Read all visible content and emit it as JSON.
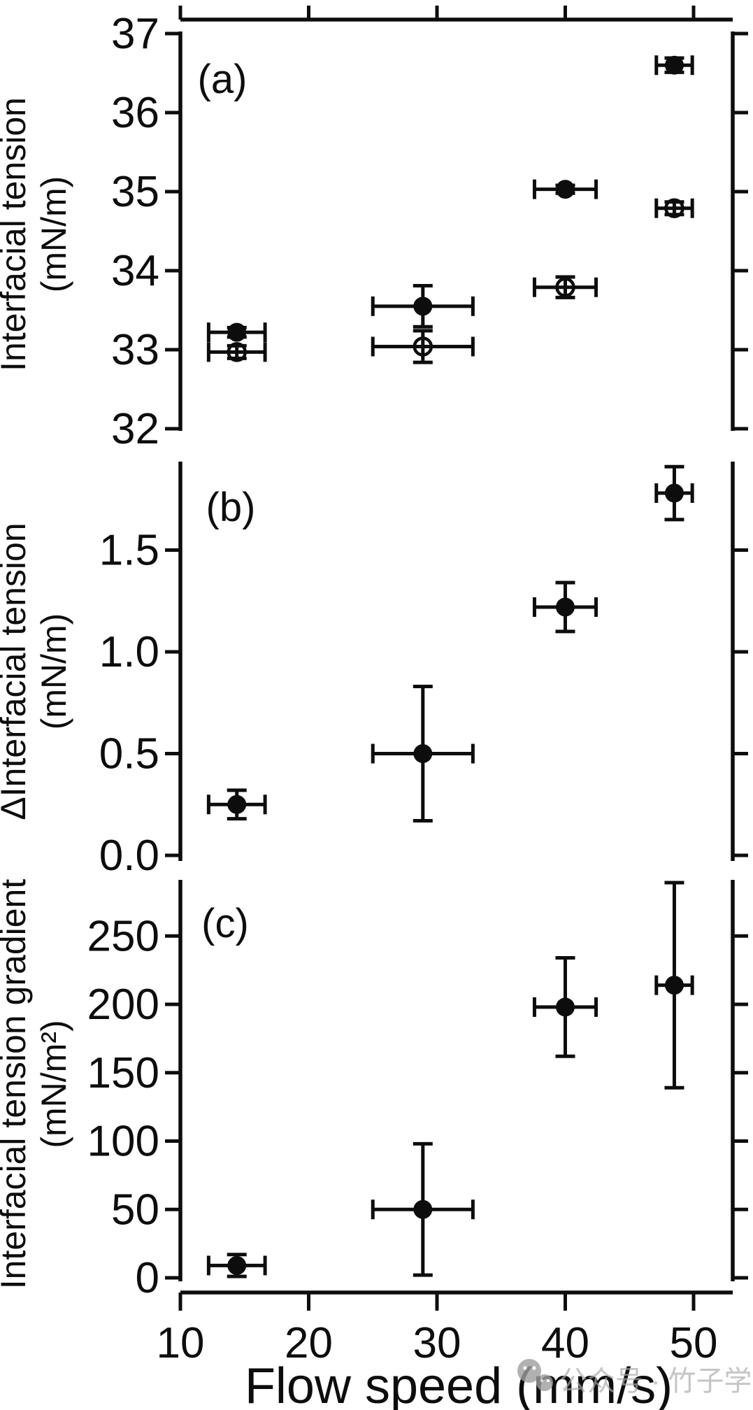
{
  "figure": {
    "panel_letters": [
      "(a)",
      "(b)",
      "(c)"
    ],
    "xaxis": {
      "label": "Flow speed (mm/s)",
      "ticks": [
        {
          "v": 10,
          "label": "10"
        },
        {
          "v": 20,
          "label": "20"
        },
        {
          "v": 30,
          "label": "30"
        },
        {
          "v": 40,
          "label": "40"
        },
        {
          "v": 50,
          "label": "50"
        }
      ],
      "range": [
        10,
        53.2
      ]
    },
    "colors": {
      "ink": "#0d0d0d",
      "background": "#ffffff",
      "watermark": "#aaaaaa"
    },
    "watermark": {
      "icon": "wechat-chat-bubbles-icon",
      "text": "公众号 · 竹子学术"
    }
  },
  "chart_data": [
    {
      "id": "a",
      "type": "scatter",
      "panel_label": "(a)",
      "ylabel": "Interfacial tension (mN/m)",
      "ylabel_lines": [
        "Interfacial tension",
        "(mN/m)"
      ],
      "ylim": [
        32,
        37
      ],
      "yticks": [
        {
          "v": 37,
          "label": "37"
        },
        {
          "v": 36,
          "label": "36"
        },
        {
          "v": 35,
          "label": "35"
        },
        {
          "v": 34,
          "label": "34"
        },
        {
          "v": 33,
          "label": "33"
        },
        {
          "v": 32,
          "label": "32"
        }
      ],
      "has_top_axis": true,
      "series": [
        {
          "name": "filled-circle-series",
          "marker": "filled-circle",
          "points": [
            {
              "x": 14.4,
              "y": 33.22,
              "xerr": 2.2,
              "yerr": 0.06
            },
            {
              "x": 28.9,
              "y": 33.55,
              "xerr": 3.9,
              "yerr": 0.26
            },
            {
              "x": 40.0,
              "y": 35.03,
              "xerr": 2.4,
              "yerr": 0.05
            },
            {
              "x": 48.5,
              "y": 36.6,
              "xerr": 1.4,
              "yerr": 0.09
            }
          ]
        },
        {
          "name": "open-circle-series",
          "marker": "open-circle",
          "points": [
            {
              "x": 14.4,
              "y": 32.97,
              "xerr": 2.2,
              "yerr": 0.08
            },
            {
              "x": 28.9,
              "y": 33.04,
              "xerr": 3.9,
              "yerr": 0.2
            },
            {
              "x": 40.0,
              "y": 33.79,
              "xerr": 2.4,
              "yerr": 0.13
            },
            {
              "x": 48.5,
              "y": 34.79,
              "xerr": 1.4,
              "yerr": 0.08
            }
          ]
        }
      ]
    },
    {
      "id": "b",
      "type": "scatter",
      "panel_label": "(b)",
      "ylabel": "ΔInterfacial tension (mN/m)",
      "ylabel_lines": [
        "ΔInterfacial tension",
        "(mN/m)"
      ],
      "ylim": [
        0.0,
        1.93
      ],
      "yticks": [
        {
          "v": 1.5,
          "label": "1.5"
        },
        {
          "v": 1.0,
          "label": "1.0"
        },
        {
          "v": 0.5,
          "label": "0.5"
        },
        {
          "v": 0.0,
          "label": "0.0"
        }
      ],
      "has_top_axis": false,
      "series": [
        {
          "name": "filled-circle-series",
          "marker": "filled-circle",
          "points": [
            {
              "x": 14.4,
              "y": 0.25,
              "xerr": 2.2,
              "yerr": 0.07
            },
            {
              "x": 28.9,
              "y": 0.5,
              "xerr": 3.9,
              "yerr": 0.33
            },
            {
              "x": 40.0,
              "y": 1.22,
              "xerr": 2.4,
              "yerr": 0.12
            },
            {
              "x": 48.5,
              "y": 1.78,
              "xerr": 1.4,
              "yerr": 0.13
            }
          ]
        }
      ]
    },
    {
      "id": "c",
      "type": "scatter",
      "panel_label": "(c)",
      "ylabel": "Interfacial tension gradient (mN/m²)",
      "ylabel_lines": [
        "Interfacial tension gradient",
        "(mN/m²)"
      ],
      "ylim": [
        0,
        290
      ],
      "yticks": [
        {
          "v": 250,
          "label": "250"
        },
        {
          "v": 200,
          "label": "200"
        },
        {
          "v": 150,
          "label": "150"
        },
        {
          "v": 100,
          "label": "100"
        },
        {
          "v": 50,
          "label": "50"
        },
        {
          "v": 0,
          "label": "0"
        }
      ],
      "has_top_axis": false,
      "series": [
        {
          "name": "filled-circle-series",
          "marker": "filled-circle",
          "points": [
            {
              "x": 14.4,
              "y": 9,
              "xerr": 2.2,
              "yerr": 8
            },
            {
              "x": 28.9,
              "y": 50,
              "xerr": 3.9,
              "yerr": 48
            },
            {
              "x": 40.0,
              "y": 198,
              "xerr": 2.4,
              "yerr": 36
            },
            {
              "x": 48.5,
              "y": 214,
              "xerr": 1.4,
              "yerr": 75
            }
          ]
        }
      ]
    }
  ]
}
